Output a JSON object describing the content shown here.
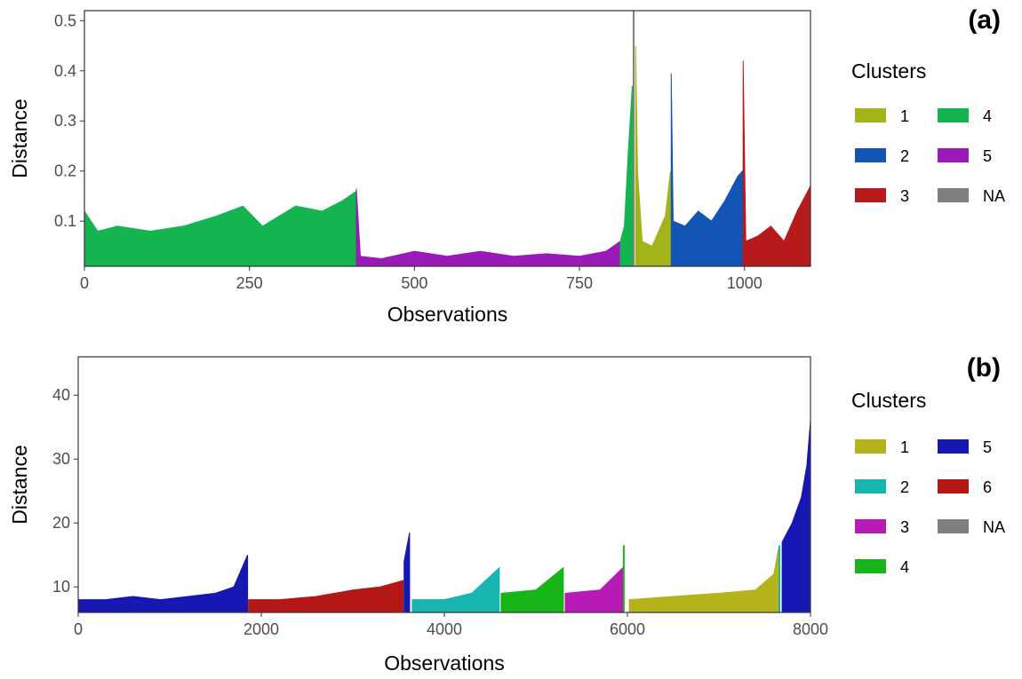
{
  "chart_data": [
    {
      "panel_label": "(a)",
      "type": "area",
      "xlabel": "Observations",
      "ylabel": "Distance",
      "xlim": [
        0,
        1100
      ],
      "ylim": [
        0.01,
        0.52
      ],
      "xticks": [
        0,
        250,
        500,
        750,
        1000
      ],
      "yticks": [
        0.1,
        0.2,
        0.3,
        0.4,
        0.5
      ],
      "ytick_labels": [
        "0.1",
        "0.2",
        "0.3",
        "0.4",
        "0.5"
      ],
      "legend_title": "Clusters",
      "legend_position": "right",
      "legend": [
        {
          "label": "1",
          "color": "#a3b41b"
        },
        {
          "label": "2",
          "color": "#1355b5"
        },
        {
          "label": "3",
          "color": "#b61a1a"
        },
        {
          "label": "4",
          "color": "#14b451"
        },
        {
          "label": "5",
          "color": "#9a1ab8"
        },
        {
          "label": "NA",
          "color": "#7f7f7f"
        }
      ],
      "segments": [
        {
          "cluster": "4",
          "color": "#14b451",
          "points": [
            [
              0,
              0.12
            ],
            [
              20,
              0.08
            ],
            [
              50,
              0.09
            ],
            [
              100,
              0.08
            ],
            [
              150,
              0.09
            ],
            [
              200,
              0.11
            ],
            [
              240,
              0.13
            ],
            [
              270,
              0.09
            ],
            [
              320,
              0.13
            ],
            [
              360,
              0.12
            ],
            [
              390,
              0.14
            ],
            [
              412,
              0.16
            ]
          ]
        },
        {
          "cluster": "5",
          "color": "#9a1ab8",
          "points": [
            [
              412,
              0.165
            ],
            [
              418,
              0.03
            ],
            [
              450,
              0.025
            ],
            [
              500,
              0.04
            ],
            [
              550,
              0.03
            ],
            [
              600,
              0.04
            ],
            [
              650,
              0.03
            ],
            [
              700,
              0.035
            ],
            [
              750,
              0.03
            ],
            [
              790,
              0.04
            ],
            [
              812,
              0.06
            ]
          ]
        },
        {
          "cluster": "4",
          "color": "#14b451",
          "points": [
            [
              812,
              0.06
            ],
            [
              818,
              0.09
            ],
            [
              824,
              0.24
            ],
            [
              830,
              0.37
            ]
          ]
        },
        {
          "cluster": "NA",
          "color": "#7f7f7f",
          "points": [
            [
              832,
              0.52
            ]
          ]
        },
        {
          "cluster": "1",
          "color": "#a3b41b",
          "points": [
            [
              835,
              0.45
            ],
            [
              838,
              0.2
            ],
            [
              845,
              0.06
            ],
            [
              860,
              0.05
            ],
            [
              870,
              0.08
            ],
            [
              880,
              0.11
            ],
            [
              888,
              0.2
            ]
          ]
        },
        {
          "cluster": "2",
          "color": "#1355b5",
          "points": [
            [
              889,
              0.395
            ],
            [
              892,
              0.1
            ],
            [
              910,
              0.09
            ],
            [
              930,
              0.12
            ],
            [
              950,
              0.1
            ],
            [
              970,
              0.14
            ],
            [
              990,
              0.19
            ],
            [
              997,
              0.2
            ]
          ]
        },
        {
          "cluster": "3",
          "color": "#b61a1a",
          "points": [
            [
              998,
              0.42
            ],
            [
              1002,
              0.06
            ],
            [
              1020,
              0.07
            ],
            [
              1040,
              0.09
            ],
            [
              1060,
              0.06
            ],
            [
              1080,
              0.12
            ],
            [
              1100,
              0.17
            ]
          ]
        }
      ]
    },
    {
      "panel_label": "(b)",
      "type": "area",
      "xlabel": "Observations",
      "ylabel": "Distance",
      "xlim": [
        0,
        8000
      ],
      "ylim": [
        6,
        46
      ],
      "xticks": [
        0,
        2000,
        4000,
        6000,
        8000
      ],
      "yticks": [
        10,
        20,
        30,
        40
      ],
      "ytick_labels": [
        "10",
        "20",
        "30",
        "40"
      ],
      "legend_title": "Clusters",
      "legend_position": "right",
      "legend": [
        {
          "label": "1",
          "color": "#b5b31c"
        },
        {
          "label": "2",
          "color": "#17b5b0"
        },
        {
          "label": "3",
          "color": "#b71ab5"
        },
        {
          "label": "4",
          "color": "#17b517"
        },
        {
          "label": "5",
          "color": "#1717b3"
        },
        {
          "label": "6",
          "color": "#b51717"
        },
        {
          "label": "NA",
          "color": "#7f7f7f"
        }
      ],
      "segments": [
        {
          "cluster": "5",
          "color": "#1717b3",
          "points": [
            [
              0,
              8
            ],
            [
              300,
              8
            ],
            [
              600,
              8.5
            ],
            [
              900,
              8
            ],
            [
              1200,
              8.5
            ],
            [
              1500,
              9
            ],
            [
              1700,
              10
            ],
            [
              1850,
              15
            ]
          ]
        },
        {
          "cluster": "6",
          "color": "#b51717",
          "points": [
            [
              1860,
              8
            ],
            [
              2200,
              8
            ],
            [
              2600,
              8.5
            ],
            [
              3000,
              9.5
            ],
            [
              3300,
              10
            ],
            [
              3550,
              11
            ]
          ]
        },
        {
          "cluster": "5",
          "color": "#1717b3",
          "points": [
            [
              3560,
              14
            ],
            [
              3620,
              18.5
            ]
          ]
        },
        {
          "cluster": "2",
          "color": "#17b5b0",
          "points": [
            [
              3650,
              8
            ],
            [
              4000,
              8
            ],
            [
              4300,
              9
            ],
            [
              4600,
              13
            ]
          ]
        },
        {
          "cluster": "4",
          "color": "#17b517",
          "points": [
            [
              4620,
              9
            ],
            [
              5000,
              9.5
            ],
            [
              5300,
              13
            ]
          ]
        },
        {
          "cluster": "3",
          "color": "#b71ab5",
          "points": [
            [
              5320,
              9
            ],
            [
              5700,
              9.5
            ],
            [
              5950,
              13
            ]
          ]
        },
        {
          "cluster": "4",
          "color": "#17b517",
          "points": [
            [
              5960,
              16.5
            ]
          ]
        },
        {
          "cluster": "1",
          "color": "#b5b31c",
          "points": [
            [
              6020,
              8
            ],
            [
              6500,
              8.5
            ],
            [
              7000,
              9
            ],
            [
              7400,
              9.5
            ],
            [
              7600,
              12
            ],
            [
              7650,
              16
            ]
          ]
        },
        {
          "cluster": "2",
          "color": "#17b5b0",
          "points": [
            [
              7660,
              16.5
            ]
          ]
        },
        {
          "cluster": "5",
          "color": "#1717b3",
          "points": [
            [
              7690,
              17
            ],
            [
              7800,
              20
            ],
            [
              7900,
              24
            ],
            [
              7960,
              29
            ],
            [
              8000,
              36
            ]
          ]
        }
      ]
    }
  ]
}
